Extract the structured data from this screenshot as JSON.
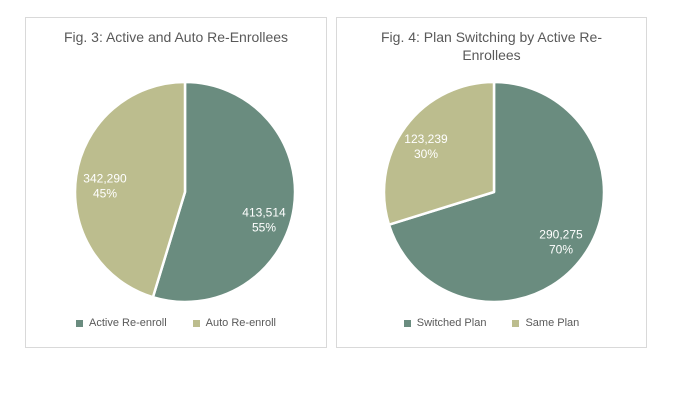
{
  "colors": {
    "background": "#ffffff",
    "panel_border": "#d9d9d9",
    "title_text": "#595959",
    "legend_text": "#595959",
    "data_label_text": "#ffffff",
    "series_dark": "#6a8c7f",
    "series_light": "#bcbd8e"
  },
  "chart_data": [
    {
      "type": "pie",
      "title": "Fig. 3: Active and Auto Re-Enrollees",
      "legend_position": "bottom",
      "start_angle_deg": 0,
      "direction": "clockwise",
      "slices": [
        {
          "label": "Active Re-enroll",
          "value": 413514,
          "value_display": "413,514",
          "pct": 55,
          "pct_display": "55%",
          "color_key": "series_dark",
          "label_pos": {
            "angle_cw_deg": 109.5,
            "radius_frac": 0.762
          }
        },
        {
          "label": "Auto Re-enroll",
          "value": 342290,
          "value_display": "342,290",
          "pct": 45,
          "pct_display": "45%",
          "color_key": "series_light",
          "label_pos": {
            "angle_cw_deg": 274.3,
            "radius_frac": 0.729
          }
        }
      ]
    },
    {
      "type": "pie",
      "title": "Fig. 4: Plan Switching by Active Re-Enrollees",
      "legend_position": "bottom",
      "start_angle_deg": 0,
      "direction": "clockwise",
      "slices": [
        {
          "label": "Switched Plan",
          "value": 290275,
          "value_display": "290,275",
          "pct": 70,
          "pct_display": "70%",
          "color_key": "series_dark",
          "label_pos": {
            "angle_cw_deg": 126.7,
            "radius_frac": 0.76
          }
        },
        {
          "label": "Same Plan",
          "value": 123239,
          "value_display": "123,239",
          "pct": 30,
          "pct_display": "30%",
          "color_key": "series_light",
          "label_pos": {
            "angle_cw_deg": 303.8,
            "radius_frac": 0.744
          }
        }
      ]
    }
  ]
}
